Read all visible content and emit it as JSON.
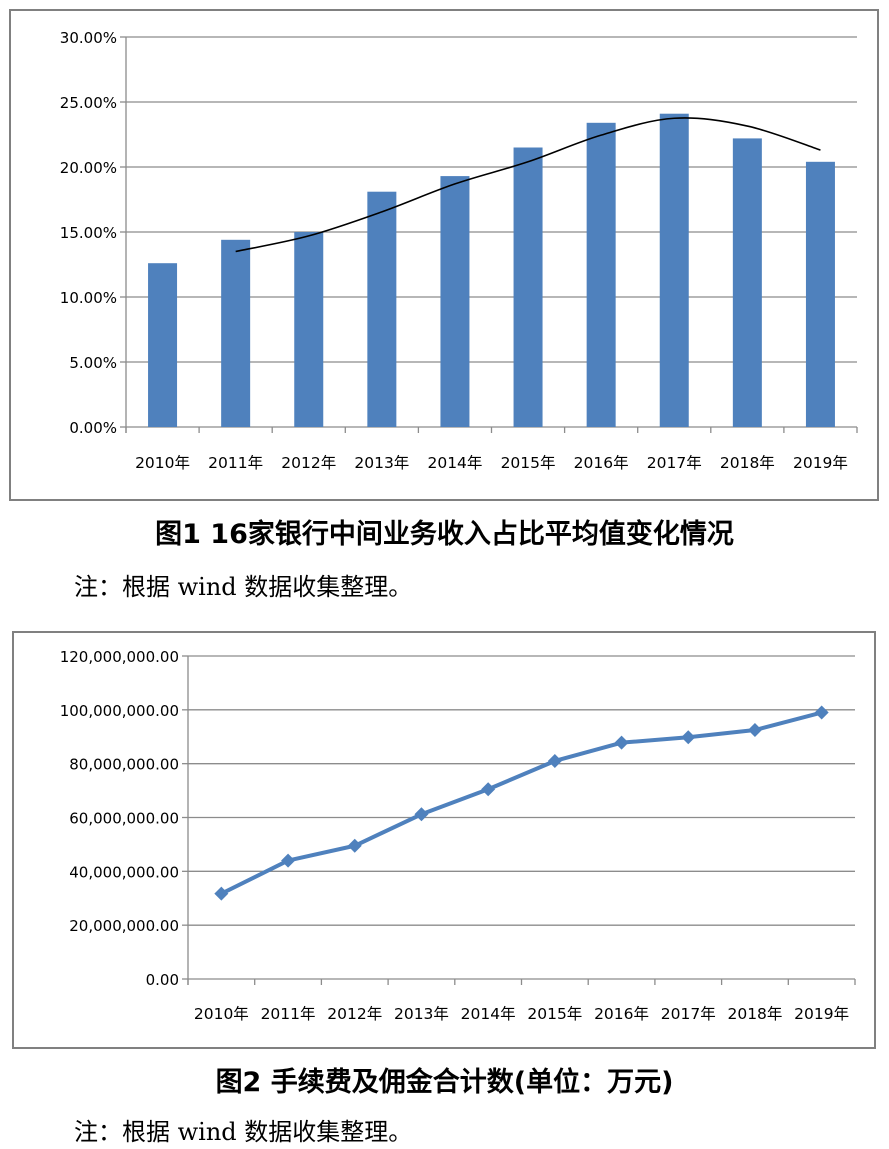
{
  "figure1": {
    "caption": "图1  16家银行中间业务收入占比平均值变化情况",
    "note": "注：根据 wind 数据收集整理。"
  },
  "figure2": {
    "caption": "图2  手续费及佣金合计数(单位：万元)",
    "note": "注：根据 wind 数据收集整理。"
  },
  "colors": {
    "bar": "#4f81bd",
    "trend": "#000000",
    "line": "#4f81bd",
    "grid": "#8c8c8c",
    "frame": "#808080"
  },
  "chart_data": [
    {
      "type": "bar",
      "title": "",
      "categories": [
        "2010年",
        "2011年",
        "2012年",
        "2013年",
        "2014年",
        "2015年",
        "2016年",
        "2017年",
        "2018年",
        "2019年"
      ],
      "series": [
        {
          "values": [
            12.6,
            14.4,
            15.0,
            18.1,
            19.3,
            21.5,
            23.4,
            24.1,
            22.2,
            20.4
          ]
        }
      ],
      "trendline": {
        "type": "moving-average",
        "values": [
          null,
          13.5,
          14.7,
          16.55,
          18.7,
          20.4,
          22.45,
          23.75,
          23.15,
          21.3
        ]
      },
      "yticks": [
        "0.00%",
        "5.00%",
        "10.00%",
        "15.00%",
        "20.00%",
        "25.00%",
        "30.00%"
      ],
      "ylim": [
        0,
        30
      ],
      "grid": true,
      "legend": "none"
    },
    {
      "type": "line",
      "title": "",
      "categories": [
        "2010年",
        "2011年",
        "2012年",
        "2013年",
        "2014年",
        "2015年",
        "2016年",
        "2017年",
        "2018年",
        "2019年"
      ],
      "series": [
        {
          "values": [
            31700000,
            44000000,
            49500000,
            61200000,
            70500000,
            81000000,
            87800000,
            89800000,
            92500000,
            99000000
          ]
        }
      ],
      "marker": "diamond",
      "yticks": [
        "0.00",
        "20,000,000.00",
        "40,000,000.00",
        "60,000,000.00",
        "80,000,000.00",
        "100,000,000.00",
        "120,000,000.00"
      ],
      "ylim": [
        0,
        120000000
      ],
      "grid": true,
      "legend": "none"
    }
  ]
}
